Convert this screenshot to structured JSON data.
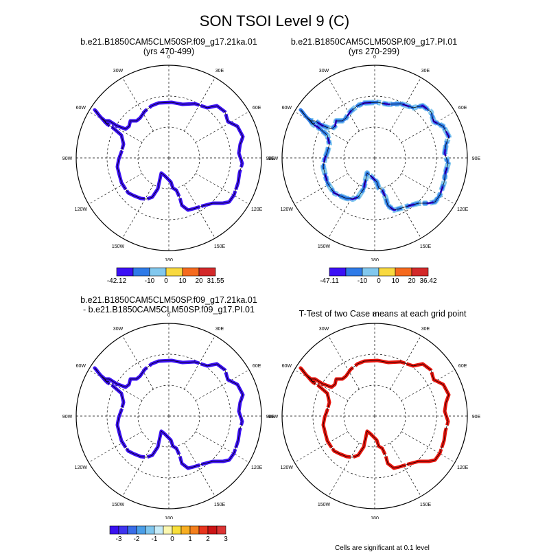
{
  "figure": {
    "title": "SON TSOI Level 9 (C)",
    "footnote": "Cells are significant at 0.1 level"
  },
  "panels": [
    {
      "title_line1": "b.e21.B1850CAM5CLM50SP.f09_g17.21ka.01",
      "title_line2": "(yrs 470-499)",
      "colorbar": {
        "colors": [
          "#3b10f5",
          "#2f7be8",
          "#82c8ee",
          "#f8d940",
          "#f56a1e",
          "#d3292a"
        ],
        "tick_labels": [
          "-42.12",
          "-10",
          "0",
          "10",
          "20",
          "31.55"
        ]
      }
    },
    {
      "title_line1": "b.e21.B1850CAM5CLM50SP.f09_g17.PI.01",
      "title_line2": "(yrs 270-299)",
      "colorbar": {
        "colors": [
          "#3b10f5",
          "#2f7be8",
          "#82c8ee",
          "#f8d940",
          "#f56a1e",
          "#d3292a"
        ],
        "tick_labels": [
          "-47.11",
          "-10",
          "0",
          "10",
          "20",
          "36.42"
        ]
      }
    },
    {
      "title_line1": "b.e21.B1850CAM5CLM50SP.f09_g17.21ka.01",
      "title_line2": "- b.e21.B1850CAM5CLM50SP.f09_g17.PI.01",
      "colorbar": {
        "colors": [
          "#3a11f0",
          "#3f34ef",
          "#3a6de8",
          "#4a9ee8",
          "#7fc6ee",
          "#c8ecf8",
          "#fbf7b0",
          "#f8df3a",
          "#f8ae22",
          "#f47f1d",
          "#e8351e",
          "#cc1416",
          "#dc3434"
        ],
        "tick_labels": [
          "-3",
          "-2",
          "-1",
          "0",
          "1",
          "2",
          "3"
        ]
      }
    },
    {
      "title_line1": "T-Test of two Case means at each grid point",
      "title_line2": ""
    }
  ],
  "map_labels": {
    "lon": [
      "0",
      "30E",
      "60E",
      "90E",
      "120E",
      "150E",
      "180",
      "150W",
      "120W",
      "90W",
      "60W",
      "30W"
    ]
  },
  "colors": {
    "purple_anomaly": "#3b10f5",
    "blue_anomaly": "#2f7be8",
    "lightblue_anomaly": "#82c8ee",
    "significant": "#e8140c",
    "coastline": "#000000"
  }
}
